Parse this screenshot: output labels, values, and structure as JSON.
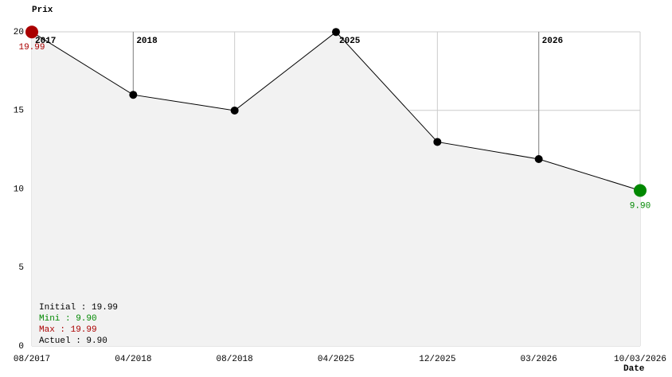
{
  "chart_data": {
    "type": "line",
    "y_axis_label": "Prix",
    "x_axis_label": "Date",
    "categories": [
      "08/2017",
      "04/2018",
      "08/2018",
      "04/2025",
      "12/2025",
      "03/2026",
      "10/03/2026"
    ],
    "values": [
      19.99,
      15.99,
      14.99,
      19.99,
      12.99,
      11.9,
      9.9
    ],
    "value_labels": [
      "19.99",
      null,
      null,
      null,
      null,
      null,
      "9.90"
    ],
    "marker_colors": [
      "#aa0000",
      "#000000",
      "#000000",
      "#000000",
      "#000000",
      "#000000",
      "#008800"
    ],
    "label_colors": [
      "#aa0000",
      null,
      null,
      null,
      null,
      null,
      "#008800"
    ],
    "line_color": "#000000",
    "area_color": "#f2f2f2",
    "ylim": [
      0,
      20
    ],
    "yticks": [
      0,
      5,
      10,
      15,
      20
    ],
    "grid": true,
    "year_markers": [
      {
        "label": "2017",
        "at": "08/2017"
      },
      {
        "label": "2018",
        "at": "04/2018"
      },
      {
        "label": "2025",
        "at": "04/2025"
      },
      {
        "label": "2026",
        "at": "03/2026"
      }
    ],
    "stats": [
      {
        "text": "Initial : 19.99",
        "color": "#000000"
      },
      {
        "text": "Mini : 9.90",
        "color": "#008800"
      },
      {
        "text": "Max : 19.99",
        "color": "#aa0000"
      },
      {
        "text": "Actuel : 9.90",
        "color": "#000000"
      }
    ]
  }
}
